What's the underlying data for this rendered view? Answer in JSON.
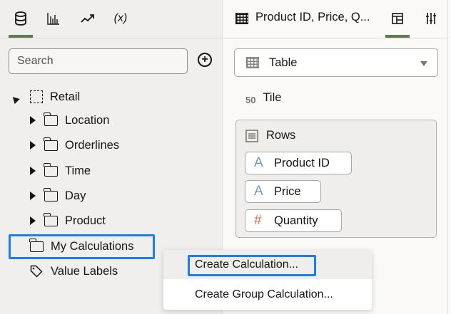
{
  "left_panel": {
    "tabs": [
      {
        "icon": "database-icon",
        "active": true
      },
      {
        "icon": "bar-chart-icon"
      },
      {
        "icon": "trend-icon"
      },
      {
        "icon": "variable-icon",
        "label": "(x)"
      }
    ],
    "search_placeholder": "Search",
    "tree": {
      "root": "Retail",
      "folders": [
        "Location",
        "Orderlines",
        "Time",
        "Day",
        "Product"
      ],
      "my_calculations": "My Calculations",
      "value_labels": "Value Labels"
    }
  },
  "context_menu": {
    "items": [
      "Create Calculation...",
      "Create Group Calculation..."
    ],
    "highlighted": 0
  },
  "right_panel": {
    "title": "Product ID, Price, Q...",
    "viz_type": "Table",
    "tile_icon_text": "50",
    "tile_label": "Tile",
    "rows_label": "Rows",
    "columns": [
      {
        "name": "Product ID",
        "type": "attribute",
        "icon": "A"
      },
      {
        "name": "Price",
        "type": "attribute",
        "icon": "A"
      },
      {
        "name": "Quantity",
        "type": "measure",
        "icon": "#"
      }
    ]
  },
  "colors": {
    "accent": "#5c7d4f",
    "highlight": "#1a7ef0",
    "attribute": "#6f9ab5",
    "measure": "#d46b5a"
  }
}
